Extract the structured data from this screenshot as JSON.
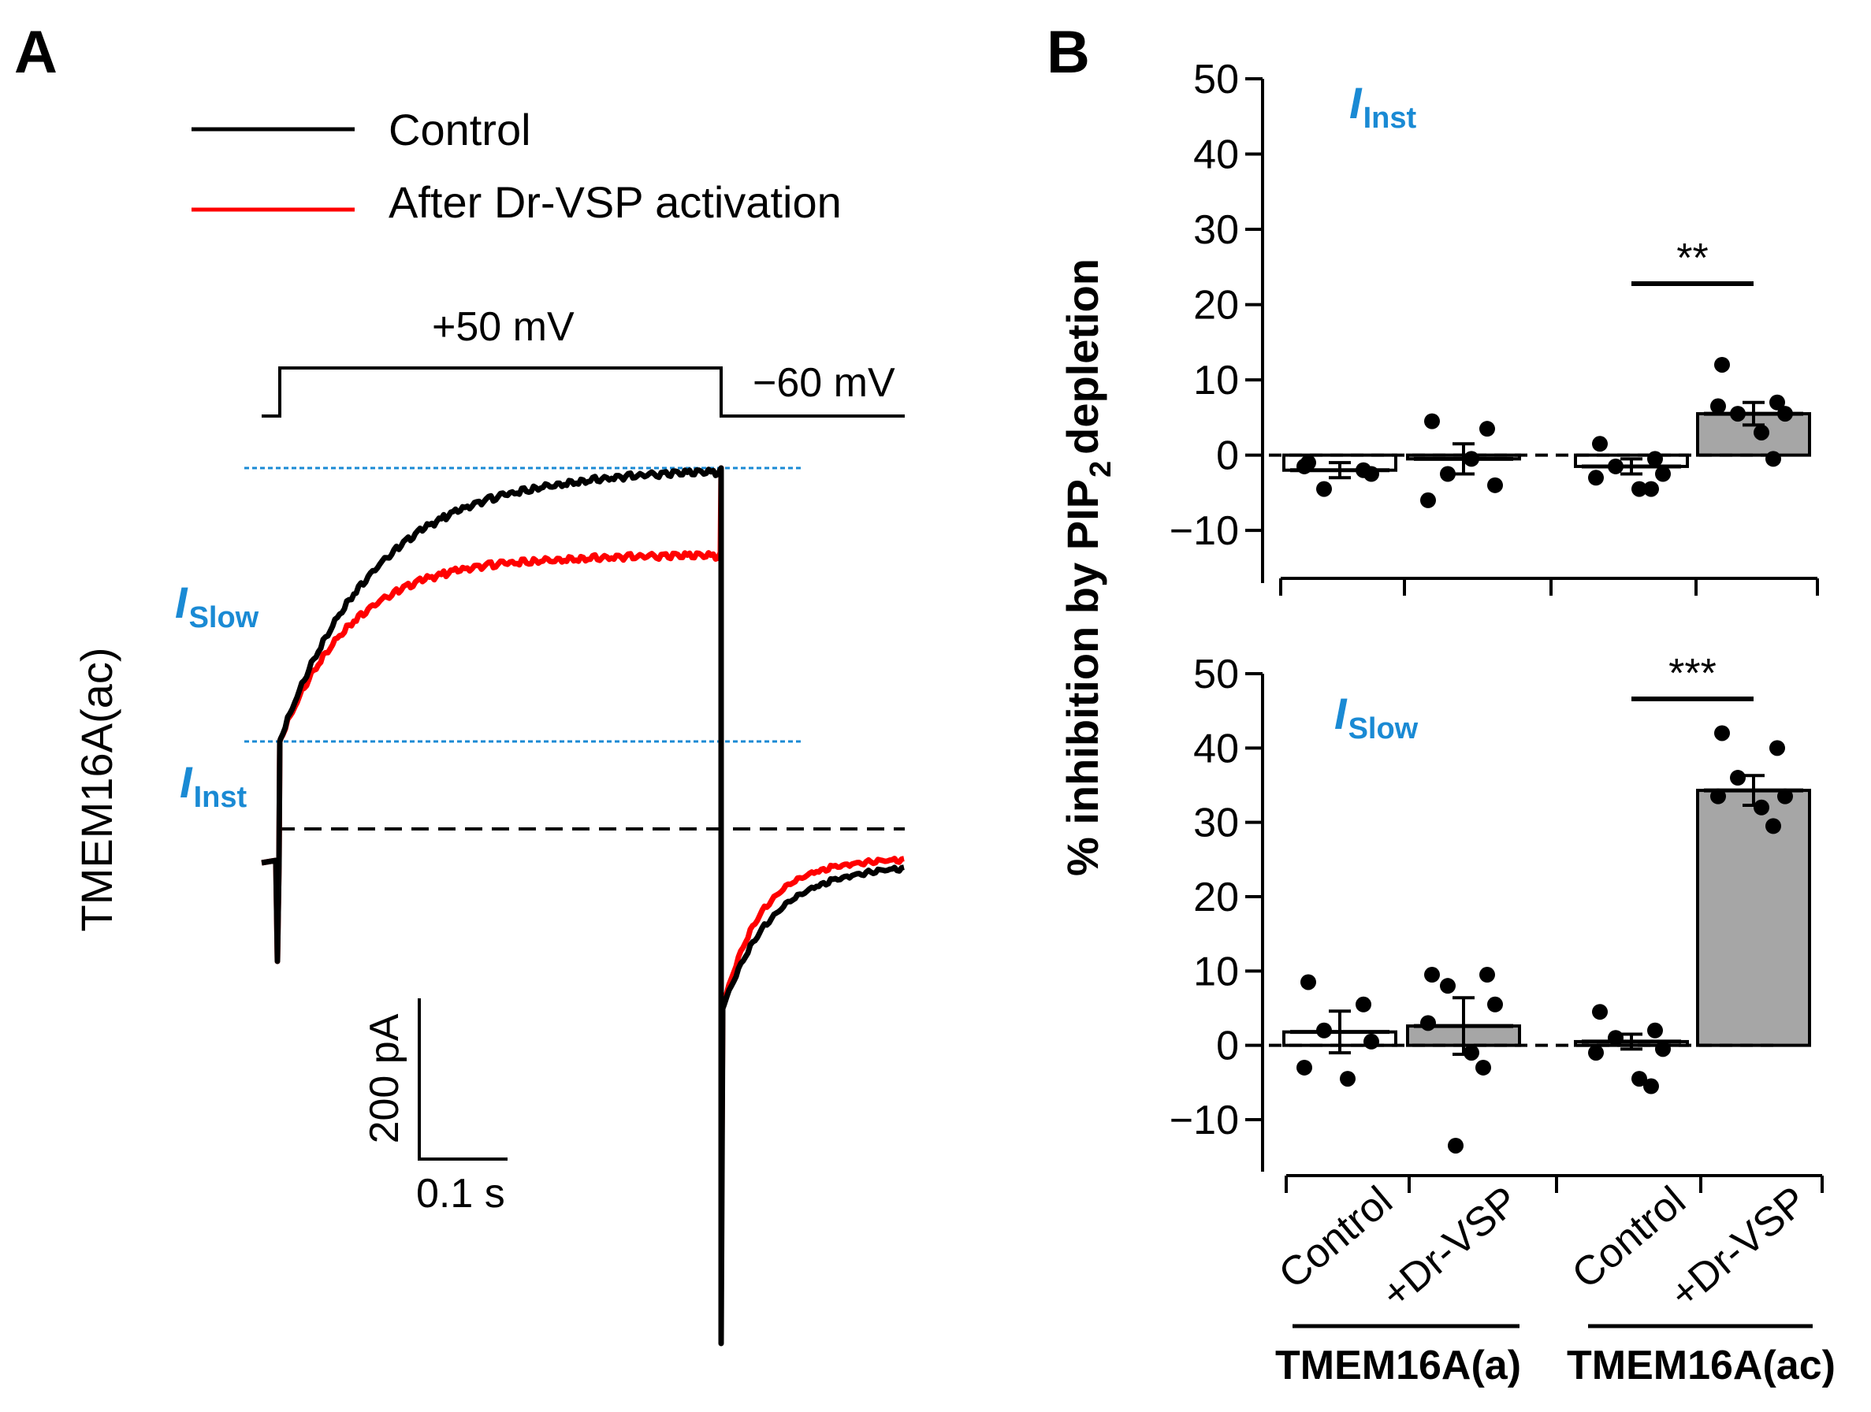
{
  "panels": {
    "a": {
      "label": "A"
    },
    "b": {
      "label": "B"
    }
  },
  "colors": {
    "control": "#000000",
    "dr_vsp": "#ff0000",
    "annotation": "#1a8ad4",
    "bar_control": "#ffffff",
    "bar_vsp": "#a6a6a6"
  },
  "panel_a": {
    "legend": [
      {
        "label": "Control",
        "color": "#000000"
      },
      {
        "label": "After Dr-VSP activation",
        "color": "#ff0000"
      }
    ],
    "voltage_step": {
      "pulse": "+50 mV",
      "hold": "−60 mV"
    },
    "cell_label": "TMEM16A(ac)",
    "i_slow": {
      "main": "I",
      "sub": "Slow"
    },
    "i_inst": {
      "main": "I",
      "sub": "Inst"
    },
    "scale_bar": {
      "current": "200 pA",
      "time": "0.1 s"
    }
  },
  "chart_data": [
    {
      "type": "bar",
      "title": "",
      "annotation": {
        "main": "I",
        "sub": "Inst"
      },
      "ylabel": "% inhibition by PIP2 depletion",
      "ylim": [
        -17,
        50
      ],
      "yticks": [
        50,
        40,
        30,
        20,
        10,
        0,
        -10
      ],
      "ytick_labels": [
        "50",
        "40",
        "30",
        "20",
        "10",
        "0",
        "−10"
      ],
      "categories": [
        "Control",
        "+Dr-VSP",
        "Control",
        "+Dr-VSP"
      ],
      "groups": [
        "TMEM16A(a)",
        "TMEM16A(ac)"
      ],
      "series": [
        {
          "name": "TMEM16A(a) Control",
          "mean": -2,
          "sem": 1,
          "points": [
            -1,
            -2,
            -4.5,
            -2.5,
            -1.5
          ]
        },
        {
          "name": "TMEM16A(a) +Dr-VSP",
          "mean": -0.5,
          "sem": 2,
          "points": [
            4.5,
            3.5,
            -2.5,
            -4,
            -6,
            -0.5
          ]
        },
        {
          "name": "TMEM16A(ac) Control",
          "mean": -1.5,
          "sem": 1,
          "points": [
            1.5,
            -0.5,
            -1.5,
            -2.5,
            -3,
            -4.5,
            -4.5
          ]
        },
        {
          "name": "TMEM16A(ac) +Dr-VSP",
          "mean": 5.5,
          "sem": 1.5,
          "points": [
            12,
            7,
            5.5,
            5.5,
            6.5,
            3,
            -0.5
          ]
        }
      ],
      "significance": {
        "label": "**",
        "from": 2,
        "to": 3
      }
    },
    {
      "type": "bar",
      "title": "",
      "annotation": {
        "main": "I",
        "sub": "Slow"
      },
      "ylabel": "% inhibition by PIP2 depletion",
      "ylim": [
        -17,
        50
      ],
      "yticks": [
        50,
        40,
        30,
        20,
        10,
        0,
        -10
      ],
      "ytick_labels": [
        "50",
        "40",
        "30",
        "20",
        "10",
        "0",
        "−10"
      ],
      "categories": [
        "Control",
        "+Dr-VSP",
        "Control",
        "+Dr-VSP"
      ],
      "groups": [
        "TMEM16A(a)",
        "TMEM16A(ac)"
      ],
      "series": [
        {
          "name": "TMEM16A(a) Control",
          "mean": 1.8,
          "sem": 2.8,
          "points": [
            8.5,
            5.5,
            2,
            0.5,
            -3,
            -4.5
          ]
        },
        {
          "name": "TMEM16A(a) +Dr-VSP",
          "mean": 2.6,
          "sem": 3.8,
          "points": [
            9.5,
            9.5,
            8,
            5.5,
            3,
            -1,
            -3,
            -13.5
          ]
        },
        {
          "name": "TMEM16A(ac) Control",
          "mean": 0.5,
          "sem": 1,
          "points": [
            4.5,
            2,
            1,
            -0.5,
            -1,
            -4.5,
            -5.5
          ]
        },
        {
          "name": "TMEM16A(ac) +Dr-VSP",
          "mean": 34.3,
          "sem": 2,
          "points": [
            42,
            40,
            36,
            33.5,
            33.5,
            32,
            29.5
          ]
        }
      ],
      "significance": {
        "label": "***",
        "from": 2,
        "to": 3
      }
    }
  ]
}
